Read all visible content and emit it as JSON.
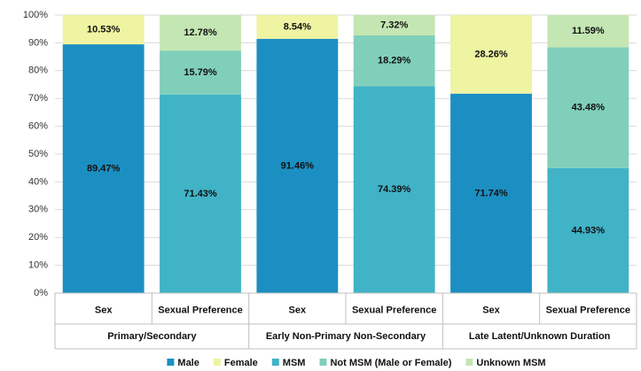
{
  "chart_data": {
    "type": "stacked-bar",
    "categories": [
      "Sex",
      "Sexual Preference",
      "Sex",
      "Sexual Preference",
      "Sex",
      "Sexual Preference"
    ],
    "groups": [
      "Primary/Secondary",
      "Early Non-Primary Non-Secondary",
      "Late Latent/Unknown Duration"
    ],
    "series": [
      {
        "name": "Male",
        "color": "#1c8fc2",
        "values": [
          89.47,
          null,
          91.46,
          null,
          71.74,
          null
        ],
        "value_labels": [
          "89.47%",
          null,
          "91.46%",
          null,
          "71.74%",
          null
        ]
      },
      {
        "name": "Female",
        "color": "#eef4a2",
        "values": [
          10.53,
          null,
          8.54,
          null,
          28.26,
          null
        ],
        "value_labels": [
          "10.53%",
          null,
          "8.54%",
          null,
          "28.26%",
          null
        ]
      },
      {
        "name": "MSM",
        "color": "#40b3c7",
        "values": [
          null,
          71.43,
          null,
          74.39,
          null,
          44.93
        ],
        "value_labels": [
          null,
          "71.43%",
          null,
          "74.39%",
          null,
          "44.93%"
        ]
      },
      {
        "name": "Not MSM (Male or Female)",
        "color": "#80cfba",
        "values": [
          null,
          15.79,
          null,
          18.29,
          null,
          43.48
        ],
        "value_labels": [
          null,
          "15.79%",
          null,
          "18.29%",
          null,
          "43.48%"
        ]
      },
      {
        "name": "Unknown MSM",
        "color": "#c4e6b2",
        "values": [
          null,
          12.78,
          null,
          7.32,
          null,
          11.59
        ],
        "value_labels": [
          null,
          "12.78%",
          null,
          "7.32%",
          null,
          "11.59%"
        ]
      }
    ],
    "ylim": [
      0,
      100
    ],
    "yticks": [
      {
        "value": 0,
        "label": "0%"
      },
      {
        "value": 10,
        "label": "10%"
      },
      {
        "value": 20,
        "label": "20%"
      },
      {
        "value": 30,
        "label": "30%"
      },
      {
        "value": 40,
        "label": "40%"
      },
      {
        "value": 50,
        "label": "50%"
      },
      {
        "value": 60,
        "label": "60%"
      },
      {
        "value": 70,
        "label": "70%"
      },
      {
        "value": 80,
        "label": "80%"
      },
      {
        "value": 90,
        "label": "90%"
      },
      {
        "value": 100,
        "label": "100%"
      }
    ],
    "grid": true,
    "legend": "bottom"
  }
}
